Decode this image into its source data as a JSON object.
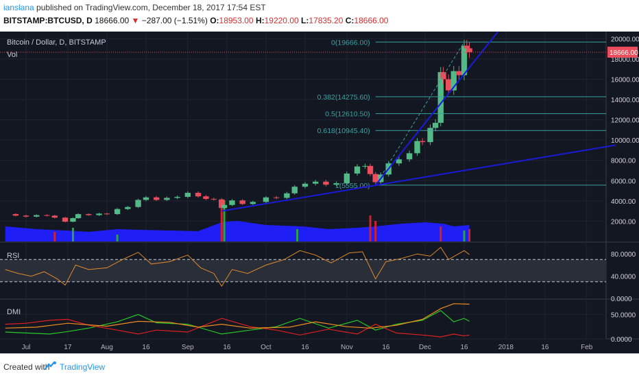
{
  "header": {
    "author": "ianslana",
    "published": "published on TradingView.com, December 18, 2017 17:54 EST",
    "symbol": "BITSTAMP:BTCUSD, D",
    "last": "18666.00",
    "change": "−287.00 (−1.51%)",
    "open_label": "O:",
    "open": "18953.00",
    "high_label": "H:",
    "high": "19220.00",
    "low_label": "L:",
    "low": "17835.20",
    "close_label": "C:",
    "close": "18666.00"
  },
  "footer": {
    "created_with": "Created with",
    "brand": "TradingView"
  },
  "colors": {
    "background": "#131722",
    "up": "#53b987",
    "down": "#eb4d5c",
    "trendline": "#1a1adb",
    "volume_area": "#1f1ff5",
    "fib": "#3aa3a3",
    "rsi": "#e08a2c",
    "dmi_plus": "#28c828",
    "dmi_minus": "#e02020",
    "adx": "#f08c1e"
  },
  "chart_data": [
    {
      "type": "candlestick",
      "title": "Bitcoin / Dollar, D, BITSTAMP",
      "legend": "Vol",
      "ylim": [
        0,
        20700
      ],
      "y_ticks": [
        "20000.00",
        "18000.00",
        "16000.00",
        "14000.00",
        "12000.00",
        "10000.00",
        "8000.00",
        "6000.00",
        "4000.00",
        "2000.00"
      ],
      "y_tick_values": [
        20000,
        18000,
        16000,
        14000,
        12000,
        10000,
        8000,
        6000,
        4000,
        2000
      ],
      "last_price_label": "18666.00",
      "last_price": 18666,
      "x_ticks": [
        "Jul",
        "17",
        "Aug",
        "16",
        "Sep",
        "16",
        "Oct",
        "16",
        "Nov",
        "16",
        "Dec",
        "16",
        "2018",
        "16",
        "Feb"
      ],
      "x_tick_dates": [
        "2017-07-01",
        "2017-07-17",
        "2017-08-01",
        "2017-08-16",
        "2017-09-01",
        "2017-09-16",
        "2017-10-01",
        "2017-10-16",
        "2017-11-01",
        "2017-11-16",
        "2017-12-01",
        "2017-12-16",
        "2018-01-01",
        "2018-01-16",
        "2018-02-01"
      ],
      "series_close": [
        [
          "2017-06-23",
          2700
        ],
        [
          "2017-06-27",
          2550
        ],
        [
          "2017-07-01",
          2450
        ],
        [
          "2017-07-05",
          2600
        ],
        [
          "2017-07-09",
          2550
        ],
        [
          "2017-07-12",
          2350
        ],
        [
          "2017-07-16",
          1950
        ],
        [
          "2017-07-19",
          2300
        ],
        [
          "2017-07-21",
          2700
        ],
        [
          "2017-07-25",
          2600
        ],
        [
          "2017-07-29",
          2750
        ],
        [
          "2017-08-01",
          2700
        ],
        [
          "2017-08-05",
          3200
        ],
        [
          "2017-08-09",
          3400
        ],
        [
          "2017-08-13",
          4100
        ],
        [
          "2017-08-16",
          4350
        ],
        [
          "2017-08-20",
          4100
        ],
        [
          "2017-08-24",
          4300
        ],
        [
          "2017-08-28",
          4400
        ],
        [
          "2017-09-01",
          4800
        ],
        [
          "2017-09-05",
          4450
        ],
        [
          "2017-09-08",
          4200
        ],
        [
          "2017-09-11",
          4150
        ],
        [
          "2017-09-14",
          3300
        ],
        [
          "2017-09-15",
          3600
        ],
        [
          "2017-09-18",
          4050
        ],
        [
          "2017-09-22",
          3700
        ],
        [
          "2017-09-26",
          3900
        ],
        [
          "2017-10-01",
          4350
        ],
        [
          "2017-10-05",
          4300
        ],
        [
          "2017-10-09",
          4750
        ],
        [
          "2017-10-12",
          5400
        ],
        [
          "2017-10-16",
          5700
        ],
        [
          "2017-10-20",
          5900
        ],
        [
          "2017-10-24",
          5600
        ],
        [
          "2017-10-28",
          5750
        ],
        [
          "2017-11-01",
          6700
        ],
        [
          "2017-11-05",
          7400
        ],
        [
          "2017-11-08",
          7450
        ],
        [
          "2017-11-10",
          6650
        ],
        [
          "2017-11-12",
          5850
        ],
        [
          "2017-11-14",
          6600
        ],
        [
          "2017-11-17",
          7700
        ],
        [
          "2017-11-21",
          8100
        ],
        [
          "2017-11-25",
          8700
        ],
        [
          "2017-11-28",
          9900
        ],
        [
          "2017-11-30",
          9800
        ],
        [
          "2017-12-03",
          11200
        ],
        [
          "2017-12-05",
          11700
        ],
        [
          "2017-12-07",
          16700
        ],
        [
          "2017-12-08",
          16000
        ],
        [
          "2017-12-10",
          14900
        ],
        [
          "2017-12-12",
          16800
        ],
        [
          "2017-12-14",
          16400
        ],
        [
          "2017-12-16",
          19300
        ],
        [
          "2017-12-17",
          19050
        ],
        [
          "2017-12-18",
          18666
        ]
      ],
      "trendlines": [
        {
          "name": "steep trendline",
          "from": [
            "2017-11-12",
            5555
          ],
          "to": [
            "2017-12-29",
            20700
          ]
        },
        {
          "name": "long trendline",
          "from": [
            "2017-09-14",
            3000
          ],
          "to": [
            "2018-02-12",
            9500
          ]
        }
      ],
      "fibonacci": [
        {
          "label": "0(19666.00)",
          "value": 19666
        },
        {
          "label": "0.382(14275.60)",
          "value": 14275.6
        },
        {
          "label": "0.5(12610.50)",
          "value": 12610.5
        },
        {
          "label": "0.618(10945.40)",
          "value": 10945.4
        },
        {
          "label": "1(5555.00)",
          "value": 5555
        }
      ]
    },
    {
      "type": "line",
      "title": "RSI",
      "ylim": [
        0,
        100
      ],
      "y_ticks": [
        "80.0000",
        "40.0000",
        "0.0000"
      ],
      "y_tick_values": [
        80,
        40,
        0
      ],
      "bands": [
        70,
        30
      ],
      "series": [
        {
          "values": [
            [
              "2017-06-23",
              52
            ],
            [
              "2017-06-28",
              45
            ],
            [
              "2017-07-03",
              40
            ],
            [
              "2017-07-08",
              48
            ],
            [
              "2017-07-13",
              35
            ],
            [
              "2017-07-16",
              24
            ],
            [
              "2017-07-20",
              60
            ],
            [
              "2017-07-25",
              52
            ],
            [
              "2017-08-01",
              55
            ],
            [
              "2017-08-07",
              70
            ],
            [
              "2017-08-13",
              83
            ],
            [
              "2017-08-18",
              62
            ],
            [
              "2017-08-25",
              66
            ],
            [
              "2017-09-01",
              78
            ],
            [
              "2017-09-06",
              55
            ],
            [
              "2017-09-11",
              45
            ],
            [
              "2017-09-14",
              22
            ],
            [
              "2017-09-18",
              52
            ],
            [
              "2017-09-24",
              45
            ],
            [
              "2017-10-01",
              60
            ],
            [
              "2017-10-08",
              70
            ],
            [
              "2017-10-14",
              86
            ],
            [
              "2017-10-20",
              78
            ],
            [
              "2017-10-26",
              64
            ],
            [
              "2017-11-02",
              82
            ],
            [
              "2017-11-07",
              84
            ],
            [
              "2017-11-12",
              35
            ],
            [
              "2017-11-16",
              66
            ],
            [
              "2017-11-22",
              72
            ],
            [
              "2017-11-28",
              80
            ],
            [
              "2017-12-03",
              76
            ],
            [
              "2017-12-07",
              92
            ],
            [
              "2017-12-10",
              70
            ],
            [
              "2017-12-13",
              78
            ],
            [
              "2017-12-16",
              86
            ],
            [
              "2017-12-18",
              79
            ]
          ]
        }
      ]
    },
    {
      "type": "line",
      "title": "DMI",
      "ylim": [
        0,
        80
      ],
      "y_ticks": [
        "50.0000",
        "0.0000"
      ],
      "y_tick_values": [
        50,
        0
      ],
      "series": [
        {
          "values": [
            [
              "2017-06-23",
              14
            ],
            [
              "2017-07-01",
              12
            ],
            [
              "2017-07-10",
              10
            ],
            [
              "2017-07-17",
              15
            ],
            [
              "2017-07-25",
              22
            ],
            [
              "2017-08-05",
              35
            ],
            [
              "2017-08-13",
              50
            ],
            [
              "2017-08-20",
              33
            ],
            [
              "2017-09-01",
              30
            ],
            [
              "2017-09-14",
              10
            ],
            [
              "2017-09-25",
              18
            ],
            [
              "2017-10-05",
              25
            ],
            [
              "2017-10-14",
              42
            ],
            [
              "2017-10-25",
              22
            ],
            [
              "2017-11-05",
              38
            ],
            [
              "2017-11-12",
              18
            ],
            [
              "2017-11-20",
              30
            ],
            [
              "2017-11-30",
              38
            ],
            [
              "2017-12-07",
              58
            ],
            [
              "2017-12-12",
              35
            ],
            [
              "2017-12-16",
              42
            ],
            [
              "2017-12-18",
              36
            ]
          ]
        },
        {
          "values": [
            [
              "2017-06-23",
              30
            ],
            [
              "2017-07-01",
              32
            ],
            [
              "2017-07-10",
              38
            ],
            [
              "2017-07-17",
              40
            ],
            [
              "2017-07-25",
              28
            ],
            [
              "2017-08-05",
              18
            ],
            [
              "2017-08-13",
              10
            ],
            [
              "2017-08-20",
              18
            ],
            [
              "2017-09-01",
              14
            ],
            [
              "2017-09-14",
              42
            ],
            [
              "2017-09-25",
              25
            ],
            [
              "2017-10-05",
              18
            ],
            [
              "2017-10-14",
              8
            ],
            [
              "2017-10-25",
              20
            ],
            [
              "2017-11-05",
              10
            ],
            [
              "2017-11-12",
              30
            ],
            [
              "2017-11-20",
              12
            ],
            [
              "2017-11-30",
              8
            ],
            [
              "2017-12-07",
              4
            ],
            [
              "2017-12-12",
              10
            ],
            [
              "2017-12-16",
              6
            ],
            [
              "2017-12-18",
              8
            ]
          ]
        },
        {
          "values": [
            [
              "2017-06-23",
              22
            ],
            [
              "2017-07-05",
              24
            ],
            [
              "2017-07-17",
              32
            ],
            [
              "2017-08-01",
              26
            ],
            [
              "2017-08-13",
              36
            ],
            [
              "2017-08-25",
              34
            ],
            [
              "2017-09-05",
              24
            ],
            [
              "2017-09-14",
              30
            ],
            [
              "2017-09-25",
              22
            ],
            [
              "2017-10-10",
              24
            ],
            [
              "2017-10-20",
              35
            ],
            [
              "2017-11-01",
              25
            ],
            [
              "2017-11-10",
              22
            ],
            [
              "2017-11-20",
              28
            ],
            [
              "2017-11-30",
              40
            ],
            [
              "2017-12-07",
              62
            ],
            [
              "2017-12-12",
              72
            ],
            [
              "2017-12-18",
              71
            ]
          ]
        }
      ]
    }
  ]
}
